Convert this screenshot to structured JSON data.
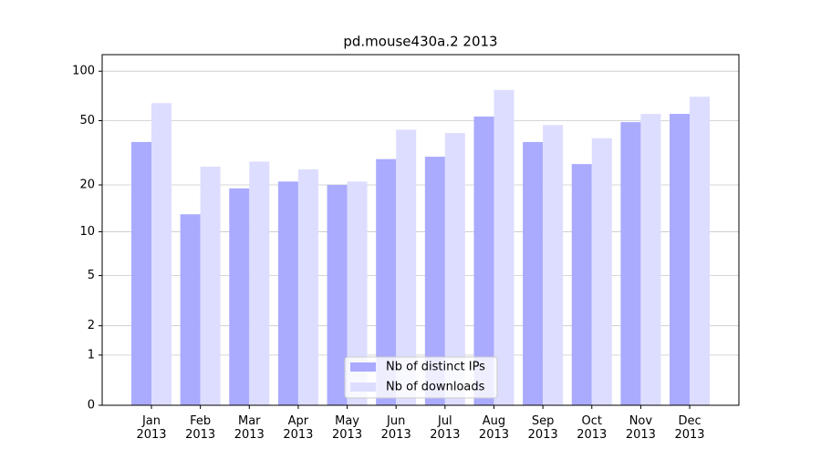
{
  "chart_data": {
    "type": "bar",
    "title": "pd.mouse430a.2 2013",
    "categories": [
      "Jan 2013",
      "Feb 2013",
      "Mar 2013",
      "Apr 2013",
      "May 2013",
      "Jun 2013",
      "Jul 2013",
      "Aug 2013",
      "Sep 2013",
      "Oct 2013",
      "Nov 2013",
      "Dec 2013"
    ],
    "series": [
      {
        "name": "Nb of distinct IPs",
        "color": "#aaaaff",
        "values": [
          37,
          13,
          19,
          21,
          20,
          29,
          30,
          53,
          37,
          27,
          49,
          55
        ]
      },
      {
        "name": "Nb of downloads",
        "color": "#ddddff",
        "values": [
          64,
          26,
          28,
          25,
          21,
          44,
          42,
          77,
          47,
          39,
          55,
          70
        ]
      }
    ],
    "yscale": "log1p",
    "ylim": [
      0,
      126
    ],
    "yticks": [
      0,
      1,
      2,
      5,
      10,
      20,
      50,
      100
    ],
    "grid": true,
    "legend": "lower center"
  }
}
